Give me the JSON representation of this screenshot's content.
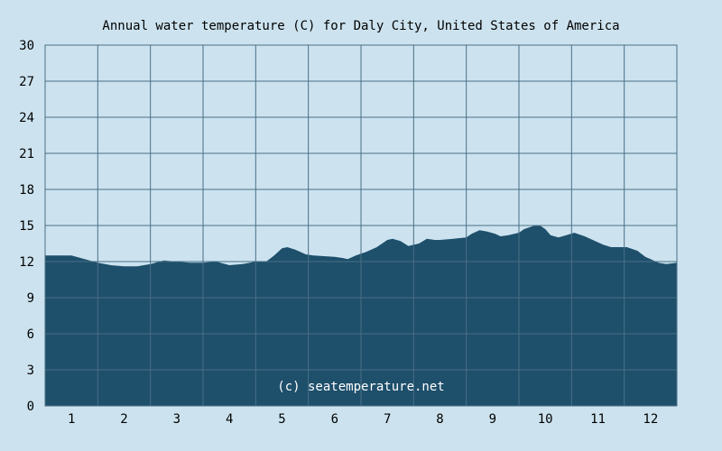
{
  "chart_data": {
    "type": "area",
    "title": "Annual water temperature (C) for Daly City, United States of America",
    "xlabel": "",
    "ylabel": "",
    "x_ticks": [
      "1",
      "2",
      "3",
      "4",
      "5",
      "6",
      "7",
      "8",
      "9",
      "10",
      "11",
      "12"
    ],
    "y_ticks": [
      "0",
      "3",
      "6",
      "9",
      "12",
      "15",
      "18",
      "21",
      "24",
      "27",
      "30"
    ],
    "xlim": [
      0.5,
      12.5
    ],
    "ylim": [
      0,
      30
    ],
    "grid": true,
    "watermark": "(c) seatemperature.net",
    "series": [
      {
        "points": [
          [
            0.5,
            12.5
          ],
          [
            0.75,
            12.5
          ],
          [
            1.0,
            12.5
          ],
          [
            1.25,
            12.2
          ],
          [
            1.5,
            11.9
          ],
          [
            1.75,
            11.7
          ],
          [
            2.0,
            11.6
          ],
          [
            2.25,
            11.6
          ],
          [
            2.5,
            11.8
          ],
          [
            2.75,
            12.1
          ],
          [
            3.0,
            12.0
          ],
          [
            3.25,
            11.9
          ],
          [
            3.5,
            11.9
          ],
          [
            3.75,
            12.0
          ],
          [
            4.0,
            11.7
          ],
          [
            4.25,
            11.8
          ],
          [
            4.5,
            12.0
          ],
          [
            4.7,
            12.0
          ],
          [
            4.85,
            12.5
          ],
          [
            5.0,
            13.1
          ],
          [
            5.1,
            13.2
          ],
          [
            5.25,
            13.0
          ],
          [
            5.45,
            12.6
          ],
          [
            5.6,
            12.5
          ],
          [
            6.0,
            12.4
          ],
          [
            6.15,
            12.3
          ],
          [
            6.25,
            12.2
          ],
          [
            6.4,
            12.5
          ],
          [
            6.6,
            12.8
          ],
          [
            6.8,
            13.2
          ],
          [
            7.0,
            13.8
          ],
          [
            7.1,
            13.9
          ],
          [
            7.25,
            13.7
          ],
          [
            7.4,
            13.3
          ],
          [
            7.6,
            13.5
          ],
          [
            7.75,
            13.9
          ],
          [
            7.9,
            13.8
          ],
          [
            8.0,
            13.8
          ],
          [
            8.25,
            13.9
          ],
          [
            8.5,
            14.0
          ],
          [
            8.6,
            14.3
          ],
          [
            8.75,
            14.6
          ],
          [
            8.9,
            14.5
          ],
          [
            9.05,
            14.3
          ],
          [
            9.15,
            14.1
          ],
          [
            9.3,
            14.2
          ],
          [
            9.5,
            14.4
          ],
          [
            9.6,
            14.7
          ],
          [
            9.8,
            15.0
          ],
          [
            9.9,
            15.0
          ],
          [
            10.0,
            14.7
          ],
          [
            10.1,
            14.2
          ],
          [
            10.25,
            14.0
          ],
          [
            10.4,
            14.2
          ],
          [
            10.55,
            14.4
          ],
          [
            10.75,
            14.1
          ],
          [
            10.9,
            13.8
          ],
          [
            11.1,
            13.4
          ],
          [
            11.25,
            13.2
          ],
          [
            11.4,
            13.2
          ],
          [
            11.55,
            13.2
          ],
          [
            11.75,
            12.9
          ],
          [
            11.9,
            12.4
          ],
          [
            12.0,
            12.2
          ],
          [
            12.15,
            11.9
          ],
          [
            12.3,
            11.8
          ],
          [
            12.5,
            11.9
          ]
        ],
        "color": "#1e4f6b"
      }
    ]
  },
  "colors": {
    "background": "#cce3ef",
    "grid": "#4a6f86",
    "fill": "#1e4f6b"
  }
}
